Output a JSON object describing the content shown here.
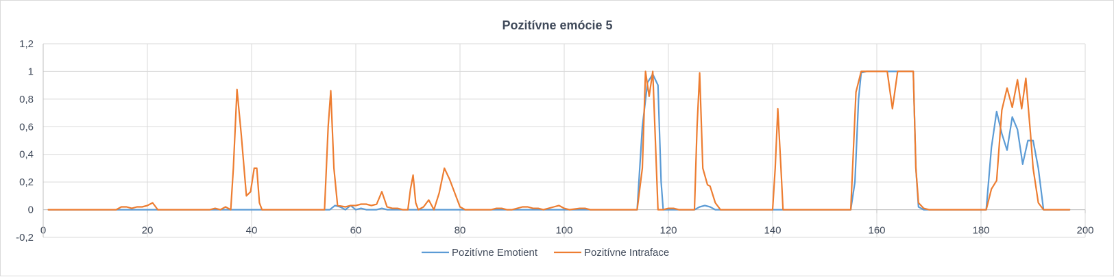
{
  "chart_data": {
    "type": "line",
    "title": "Pozitívne emócie 5",
    "xlabel": "",
    "ylabel": "",
    "xlim": [
      0,
      200
    ],
    "ylim": [
      -0.2,
      1.2
    ],
    "x_ticks": [
      0,
      20,
      40,
      60,
      80,
      100,
      120,
      140,
      160,
      180,
      200
    ],
    "x_tick_labels": [
      "0",
      "20",
      "40",
      "60",
      "80",
      "100",
      "120",
      "140",
      "160",
      "180",
      "200"
    ],
    "y_ticks": [
      -0.2,
      0,
      0.2,
      0.4,
      0.6,
      0.8,
      1,
      1.2
    ],
    "y_tick_labels": [
      "-0,2",
      "0",
      "0,2",
      "0,4",
      "0,6",
      "0,8",
      "1",
      "1,2"
    ],
    "grid": true,
    "legend_position": "bottom",
    "series": [
      {
        "name": "Pozitívne Emotient",
        "color": "#5b9bd5",
        "points": [
          [
            1,
            0
          ],
          [
            14,
            0
          ],
          [
            54,
            0
          ],
          [
            55,
            0
          ],
          [
            56,
            0.03
          ],
          [
            57,
            0.02
          ],
          [
            58,
            0
          ],
          [
            59,
            0.03
          ],
          [
            60,
            0
          ],
          [
            61,
            0.01
          ],
          [
            62,
            0
          ],
          [
            64,
            0
          ],
          [
            65,
            0.01
          ],
          [
            66,
            0
          ],
          [
            114,
            0
          ],
          [
            115,
            0.6
          ],
          [
            116,
            0.92
          ],
          [
            117,
            0.98
          ],
          [
            118,
            0.9
          ],
          [
            118.6,
            0.2
          ],
          [
            119,
            0
          ],
          [
            125,
            0
          ],
          [
            126,
            0.02
          ],
          [
            127,
            0.03
          ],
          [
            128,
            0.02
          ],
          [
            129,
            0
          ],
          [
            141,
            0
          ],
          [
            155,
            0
          ],
          [
            155.8,
            0.2
          ],
          [
            156.5,
            0.8
          ],
          [
            157,
            0.99
          ],
          [
            158,
            1
          ],
          [
            160,
            1
          ],
          [
            162,
            1
          ],
          [
            164,
            1
          ],
          [
            166,
            1
          ],
          [
            167,
            1
          ],
          [
            167.5,
            0.3
          ],
          [
            168,
            0.02
          ],
          [
            169,
            0
          ],
          [
            181,
            0
          ],
          [
            182,
            0.45
          ],
          [
            183,
            0.71
          ],
          [
            184,
            0.55
          ],
          [
            185,
            0.43
          ],
          [
            186,
            0.67
          ],
          [
            187,
            0.58
          ],
          [
            188,
            0.33
          ],
          [
            189,
            0.5
          ],
          [
            190,
            0.5
          ],
          [
            191,
            0.3
          ],
          [
            192,
            0
          ],
          [
            197,
            0
          ]
        ]
      },
      {
        "name": "Pozitívne Intraface",
        "color": "#ed7d31",
        "points": [
          [
            1,
            0
          ],
          [
            14,
            0
          ],
          [
            15,
            0.02
          ],
          [
            16,
            0.02
          ],
          [
            17,
            0.01
          ],
          [
            18,
            0.02
          ],
          [
            19,
            0.02
          ],
          [
            20,
            0.03
          ],
          [
            21,
            0.05
          ],
          [
            22,
            0
          ],
          [
            32,
            0
          ],
          [
            33,
            0.01
          ],
          [
            34,
            0
          ],
          [
            35,
            0.02
          ],
          [
            36,
            0
          ],
          [
            36.5,
            0.3
          ],
          [
            37.2,
            0.87
          ],
          [
            38,
            0.55
          ],
          [
            39,
            0.1
          ],
          [
            39.8,
            0.13
          ],
          [
            40.5,
            0.3
          ],
          [
            41,
            0.3
          ],
          [
            41.5,
            0.05
          ],
          [
            42,
            0
          ],
          [
            54,
            0
          ],
          [
            54.7,
            0.6
          ],
          [
            55.2,
            0.86
          ],
          [
            55.8,
            0.3
          ],
          [
            56.5,
            0.03
          ],
          [
            58,
            0.02
          ],
          [
            59,
            0.03
          ],
          [
            60,
            0.03
          ],
          [
            61,
            0.04
          ],
          [
            62,
            0.04
          ],
          [
            63,
            0.03
          ],
          [
            64,
            0.04
          ],
          [
            65,
            0.13
          ],
          [
            66,
            0.02
          ],
          [
            67,
            0.01
          ],
          [
            68,
            0.01
          ],
          [
            69,
            0
          ],
          [
            70,
            0
          ],
          [
            70.5,
            0.15
          ],
          [
            71,
            0.25
          ],
          [
            71.5,
            0.05
          ],
          [
            72,
            0
          ],
          [
            73,
            0.02
          ],
          [
            74,
            0.07
          ],
          [
            75,
            0
          ],
          [
            76,
            0.12
          ],
          [
            77,
            0.3
          ],
          [
            78,
            0.22
          ],
          [
            79,
            0.12
          ],
          [
            80,
            0.02
          ],
          [
            81,
            0
          ],
          [
            86,
            0
          ],
          [
            87,
            0.01
          ],
          [
            88,
            0.01
          ],
          [
            89,
            0
          ],
          [
            90,
            0
          ],
          [
            91,
            0.01
          ],
          [
            92,
            0.02
          ],
          [
            93,
            0.02
          ],
          [
            94,
            0.01
          ],
          [
            95,
            0.01
          ],
          [
            96,
            0
          ],
          [
            97,
            0.01
          ],
          [
            98,
            0.02
          ],
          [
            99,
            0.03
          ],
          [
            100,
            0.01
          ],
          [
            101,
            0
          ],
          [
            103,
            0.01
          ],
          [
            104,
            0.01
          ],
          [
            105,
            0
          ],
          [
            114,
            0
          ],
          [
            115,
            0.3
          ],
          [
            115.6,
            1
          ],
          [
            116.3,
            0.82
          ],
          [
            117,
            1
          ],
          [
            117.5,
            0.5
          ],
          [
            118,
            0
          ],
          [
            119,
            0
          ],
          [
            120,
            0.01
          ],
          [
            121,
            0.01
          ],
          [
            122,
            0
          ],
          [
            124,
            0
          ],
          [
            125,
            0
          ],
          [
            125.5,
            0.6
          ],
          [
            126,
            0.99
          ],
          [
            126.6,
            0.3
          ],
          [
            127.5,
            0.18
          ],
          [
            128,
            0.17
          ],
          [
            129,
            0.05
          ],
          [
            130,
            0
          ],
          [
            140,
            0
          ],
          [
            140.5,
            0.3
          ],
          [
            141,
            0.73
          ],
          [
            141.6,
            0.3
          ],
          [
            142,
            0
          ],
          [
            155,
            0
          ],
          [
            156,
            0.85
          ],
          [
            157,
            1
          ],
          [
            158,
            1
          ],
          [
            160,
            1
          ],
          [
            162,
            1
          ],
          [
            163,
            0.73
          ],
          [
            164,
            1
          ],
          [
            166,
            1
          ],
          [
            167,
            1
          ],
          [
            167.5,
            0.3
          ],
          [
            168,
            0.05
          ],
          [
            169,
            0.01
          ],
          [
            170,
            0
          ],
          [
            181,
            0
          ],
          [
            182,
            0.15
          ],
          [
            183,
            0.21
          ],
          [
            184,
            0.72
          ],
          [
            185,
            0.88
          ],
          [
            186,
            0.74
          ],
          [
            187,
            0.94
          ],
          [
            187.8,
            0.73
          ],
          [
            188.6,
            0.95
          ],
          [
            189.5,
            0.55
          ],
          [
            190,
            0.3
          ],
          [
            191,
            0.05
          ],
          [
            192,
            0
          ],
          [
            197,
            0
          ]
        ]
      }
    ]
  }
}
